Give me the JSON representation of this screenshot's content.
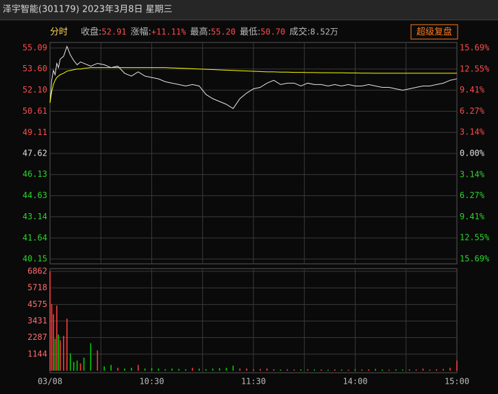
{
  "header": {
    "title": "泽宇智能(301179) 2023年3月8日 星期三",
    "tab": "分时",
    "stats": [
      {
        "label": "收盘:",
        "value": "52.91"
      },
      {
        "label": "涨幅:",
        "value": "+11.11%"
      },
      {
        "label": "最高:",
        "value": "55.20"
      },
      {
        "label": "最低:",
        "value": "50.70"
      },
      {
        "label": "成交:",
        "value": "8.52万"
      }
    ],
    "button": "超级复盘"
  },
  "chart_data": [
    {
      "type": "line",
      "x": [
        0,
        1,
        2,
        3,
        4,
        5,
        6,
        8,
        10,
        12,
        14,
        16,
        18,
        20,
        24,
        28,
        32,
        36,
        40,
        44,
        48,
        52,
        56,
        60,
        64,
        68,
        72,
        76,
        80,
        84,
        88,
        92,
        96,
        100,
        104,
        108,
        112,
        116,
        120,
        124,
        128,
        132,
        136,
        140,
        144,
        148,
        152,
        156,
        160,
        164,
        168,
        172,
        176,
        180,
        184,
        188,
        192,
        196,
        200,
        204,
        208,
        212,
        216,
        220,
        224,
        228,
        232,
        236,
        240
      ],
      "xlim": [
        0,
        240
      ],
      "xgrid": [
        30,
        60,
        90,
        120,
        150,
        180,
        210
      ],
      "ylim": [
        40.15,
        55.09
      ],
      "yticks": [
        55.09,
        {
          "value": 53.6,
          "label": "53.60"
        },
        {
          "value": 52.1,
          "label": "52.10"
        },
        50.61,
        49.11,
        47.62,
        46.13,
        44.63,
        43.14,
        41.64,
        40.15
      ],
      "y2lim": [
        -15.69,
        15.69
      ],
      "y2ticks": [
        {
          "value": 15.69,
          "label": "15.69%"
        },
        {
          "value": 12.55,
          "label": "12.55%"
        },
        {
          "value": 9.41,
          "label": "9.41%"
        },
        {
          "value": 6.27,
          "label": "6.27%"
        },
        {
          "value": 3.14,
          "label": "3.14%"
        },
        {
          "value": 0,
          "label": "0.00%"
        },
        {
          "value": -3.14,
          "label": "3.14%"
        },
        {
          "value": -6.27,
          "label": "6.27%"
        },
        {
          "value": -9.41,
          "label": "9.41%"
        },
        {
          "value": -12.55,
          "label": "12.55%"
        },
        {
          "value": -15.69,
          "label": "15.69%"
        }
      ],
      "grid": true,
      "series": [
        {
          "color": "#e8e8e8",
          "values": [
            51.2,
            52.8,
            53.5,
            53.2,
            54.0,
            53.7,
            54.3,
            54.5,
            55.2,
            54.6,
            54.2,
            53.9,
            54.1,
            54.0,
            53.8,
            54.0,
            53.9,
            53.7,
            53.8,
            53.3,
            53.1,
            53.4,
            53.1,
            53.0,
            52.9,
            52.7,
            52.6,
            52.5,
            52.4,
            52.5,
            52.4,
            51.8,
            51.5,
            51.3,
            51.1,
            50.8,
            51.5,
            51.9,
            52.2,
            52.3,
            52.6,
            52.8,
            52.5,
            52.6,
            52.6,
            52.4,
            52.6,
            52.5,
            52.5,
            52.4,
            52.5,
            52.4,
            52.5,
            52.4,
            52.4,
            52.5,
            52.4,
            52.3,
            52.3,
            52.2,
            52.1,
            52.2,
            52.3,
            52.4,
            52.4,
            52.5,
            52.6,
            52.8,
            52.91
          ]
        },
        {
          "color": "#ffff00",
          "values": [
            51.2,
            52.0,
            52.5,
            52.8,
            53.0,
            53.1,
            53.2,
            53.3,
            53.45,
            53.5,
            53.55,
            53.6,
            53.6,
            53.65,
            53.7,
            53.7,
            53.7,
            53.7,
            53.7,
            53.7,
            53.7,
            53.7,
            53.7,
            53.7,
            53.7,
            53.7,
            53.68,
            53.66,
            53.64,
            53.62,
            53.6,
            53.58,
            53.56,
            53.54,
            53.52,
            53.5,
            53.48,
            53.46,
            53.44,
            53.42,
            53.4,
            53.4,
            53.38,
            53.38,
            53.36,
            53.36,
            53.35,
            53.35,
            53.34,
            53.34,
            53.33,
            53.33,
            53.32,
            53.32,
            53.31,
            53.31,
            53.3,
            53.3,
            53.3,
            53.3,
            53.3,
            53.3,
            53.3,
            53.3,
            53.3,
            53.3,
            53.3,
            53.3,
            53.3
          ]
        }
      ]
    },
    {
      "type": "bar",
      "x": [
        0,
        1,
        2,
        3,
        4,
        5,
        6,
        8,
        10,
        12,
        14,
        16,
        18,
        20,
        24,
        28,
        32,
        36,
        40,
        44,
        48,
        52,
        56,
        60,
        64,
        68,
        72,
        76,
        80,
        84,
        88,
        92,
        96,
        100,
        104,
        108,
        112,
        116,
        120,
        124,
        128,
        132,
        136,
        140,
        144,
        148,
        152,
        156,
        160,
        164,
        168,
        172,
        176,
        180,
        184,
        188,
        192,
        196,
        200,
        204,
        208,
        212,
        216,
        220,
        224,
        228,
        232,
        236,
        240
      ],
      "xlim": [
        0,
        240
      ],
      "xticks": [
        {
          "value": 0,
          "label": "03/08"
        },
        {
          "value": 60,
          "label": "10:30"
        },
        {
          "value": 120,
          "label": "11:30"
        },
        {
          "value": 180,
          "label": "14:00"
        },
        {
          "value": 240,
          "label": "15:00"
        }
      ],
      "ylim": [
        0,
        6862
      ],
      "yticks": [
        1144,
        2287,
        3431,
        4575,
        5718,
        6862
      ],
      "values": [
        6862,
        4600,
        3900,
        2200,
        4500,
        2500,
        2100,
        2400,
        3600,
        1200,
        600,
        700,
        500,
        900,
        1900,
        1400,
        300,
        400,
        200,
        150,
        200,
        400,
        150,
        180,
        150,
        100,
        150,
        120,
        100,
        200,
        150,
        100,
        150,
        180,
        200,
        350,
        150,
        150,
        100,
        120,
        150,
        100,
        80,
        100,
        80,
        90,
        100,
        80,
        80,
        70,
        90,
        80,
        70,
        100,
        80,
        90,
        120,
        80,
        70,
        90,
        80,
        90,
        80,
        150,
        80,
        100,
        120,
        200,
        700
      ],
      "up_color": "#ff3c3c",
      "down_color": "#00d000"
    }
  ]
}
